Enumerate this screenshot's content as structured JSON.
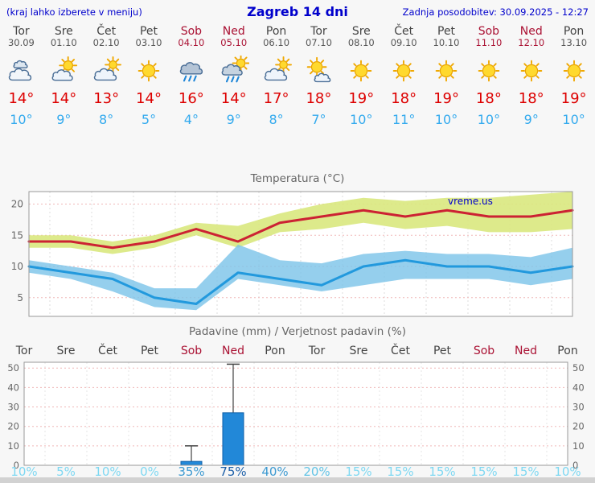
{
  "header": {
    "left_note": "(kraj lahko izberete v meniju)",
    "title": "Zagreb 14 dni",
    "updated": "Zadnja posodobitev: 30.09.2025 - 12:27"
  },
  "days": [
    {
      "name": "Tor",
      "date": "30.09",
      "weekend": false,
      "icon": "cloudy",
      "tmax": "14°",
      "tmin": "10°"
    },
    {
      "name": "Sre",
      "date": "01.10",
      "weekend": false,
      "icon": "partly-cloudy",
      "tmax": "14°",
      "tmin": "9°"
    },
    {
      "name": "Čet",
      "date": "02.10",
      "weekend": false,
      "icon": "mostly-cloudy",
      "tmax": "13°",
      "tmin": "8°"
    },
    {
      "name": "Pet",
      "date": "03.10",
      "weekend": false,
      "icon": "sunny",
      "tmax": "14°",
      "tmin": "5°"
    },
    {
      "name": "Sob",
      "date": "04.10",
      "weekend": true,
      "icon": "rain",
      "tmax": "16°",
      "tmin": "4°"
    },
    {
      "name": "Ned",
      "date": "05.10",
      "weekend": true,
      "icon": "showers",
      "tmax": "14°",
      "tmin": "9°"
    },
    {
      "name": "Pon",
      "date": "06.10",
      "weekend": false,
      "icon": "mostly-cloudy",
      "tmax": "17°",
      "tmin": "8°"
    },
    {
      "name": "Tor",
      "date": "07.10",
      "weekend": false,
      "icon": "mostly-sunny",
      "tmax": "18°",
      "tmin": "7°"
    },
    {
      "name": "Sre",
      "date": "08.10",
      "weekend": false,
      "icon": "sunny",
      "tmax": "19°",
      "tmin": "10°"
    },
    {
      "name": "Čet",
      "date": "09.10",
      "weekend": false,
      "icon": "sunny",
      "tmax": "18°",
      "tmin": "11°"
    },
    {
      "name": "Pet",
      "date": "10.10",
      "weekend": false,
      "icon": "sunny",
      "tmax": "19°",
      "tmin": "10°"
    },
    {
      "name": "Sob",
      "date": "11.10",
      "weekend": true,
      "icon": "sunny",
      "tmax": "18°",
      "tmin": "10°"
    },
    {
      "name": "Ned",
      "date": "12.10",
      "weekend": true,
      "icon": "sunny",
      "tmax": "18°",
      "tmin": "9°"
    },
    {
      "name": "Pon",
      "date": "13.10",
      "weekend": false,
      "icon": "sunny",
      "tmax": "19°",
      "tmin": "10°"
    }
  ],
  "chart_data": [
    {
      "type": "line",
      "title": "Temperatura (°C)",
      "watermark": "vreme.us",
      "x_labels": [
        "Tor",
        "Sre",
        "Čet",
        "Pet",
        "Sob",
        "Ned",
        "Pon",
        "Tor",
        "Sre",
        "Čet",
        "Pet",
        "Sob",
        "Ned",
        "Pon"
      ],
      "ylim": [
        2,
        22
      ],
      "yticks": [
        5,
        10,
        15,
        20
      ],
      "grid": true,
      "series": [
        {
          "name": "max-temperature",
          "color": "#cc2233",
          "values": [
            14,
            14,
            13,
            14,
            16,
            14,
            17,
            18,
            19,
            18,
            19,
            18,
            18,
            19
          ]
        },
        {
          "name": "min-temperature",
          "color": "#2299dd",
          "values": [
            10,
            9,
            8,
            5,
            4,
            9,
            8,
            7,
            10,
            11,
            10,
            10,
            9,
            10
          ]
        }
      ],
      "bands": [
        {
          "name": "max-range",
          "color": "#d9e87e",
          "opacity": 0.9,
          "upper": [
            15,
            15,
            14,
            15,
            17,
            16.5,
            18.5,
            20,
            21,
            20.5,
            21,
            21,
            21.5,
            22
          ],
          "lower": [
            13,
            13,
            12,
            13,
            15,
            13,
            15.5,
            16,
            17,
            16,
            16.5,
            15.5,
            15.5,
            16
          ]
        },
        {
          "name": "min-range",
          "color": "#7ac3e8",
          "opacity": 0.8,
          "upper": [
            11,
            10,
            9,
            6.5,
            6.5,
            13.5,
            11,
            10.5,
            12,
            12.5,
            12,
            12,
            11.5,
            13
          ],
          "lower": [
            9,
            8,
            6,
            3.5,
            3,
            8,
            7,
            6,
            7,
            8,
            8,
            8,
            7,
            8
          ]
        }
      ]
    },
    {
      "type": "bar",
      "title": "Padavine (mm) / Verjetnost padavin (%)",
      "x_labels": [
        "Tor",
        "Sre",
        "Čet",
        "Pet",
        "Sob",
        "Ned",
        "Pon",
        "Tor",
        "Sre",
        "Čet",
        "Pet",
        "Sob",
        "Ned",
        "Pon"
      ],
      "weekend": [
        false,
        false,
        false,
        false,
        true,
        true,
        false,
        false,
        false,
        false,
        false,
        true,
        true,
        false
      ],
      "ylim": [
        0,
        53
      ],
      "yticks": [
        0,
        10,
        20,
        30,
        40,
        50
      ],
      "bar_color": "#2288d8",
      "bars": [
        0,
        0,
        0,
        0,
        2,
        27,
        0,
        0,
        0,
        0,
        0,
        0,
        0,
        0
      ],
      "whiskers": [
        0,
        0,
        0,
        0,
        10,
        52,
        0,
        0,
        0,
        0,
        0,
        0,
        0,
        0
      ],
      "pop_labels": [
        "10%",
        "5%",
        "10%",
        "0%",
        "35%",
        "75%",
        "40%",
        "20%",
        "15%",
        "15%",
        "15%",
        "15%",
        "15%",
        "10%"
      ],
      "pop_colors": [
        "#7ed8f2",
        "#7ed8f2",
        "#7ed8f2",
        "#7ed8f2",
        "#3d9ad1",
        "#1c5fa8",
        "#3d9ad1",
        "#62c4e6",
        "#7ed8f2",
        "#7ed8f2",
        "#7ed8f2",
        "#7ed8f2",
        "#7ed8f2",
        "#7ed8f2"
      ]
    }
  ]
}
